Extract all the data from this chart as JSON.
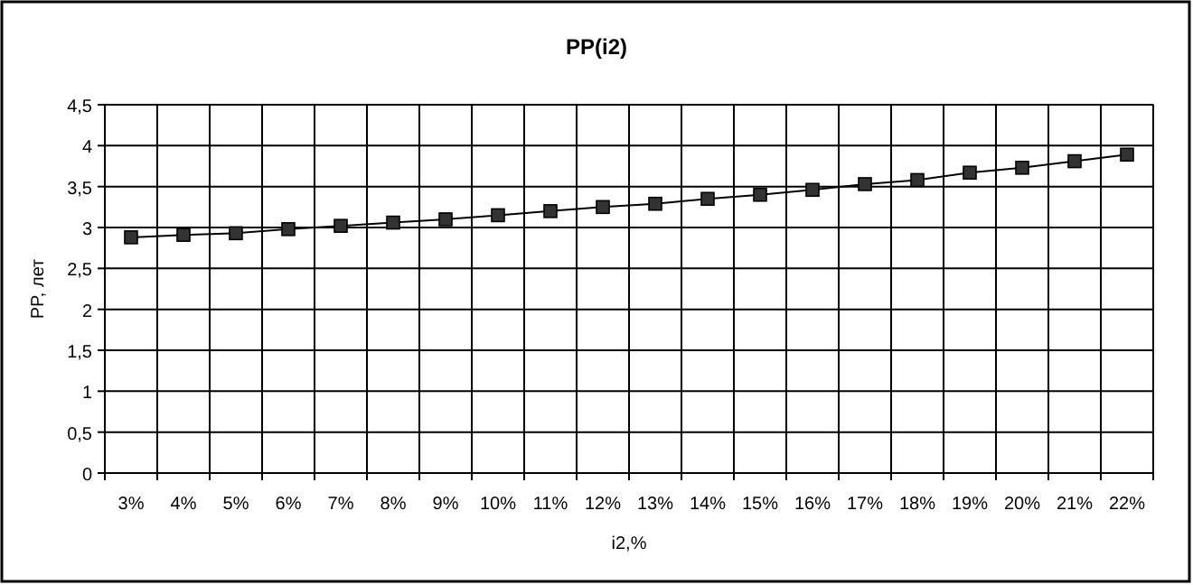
{
  "chart_data": {
    "type": "line",
    "title": "PP(i2)",
    "xlabel": "i2,%",
    "ylabel": "PP, лет",
    "categories": [
      "3%",
      "4%",
      "5%",
      "6%",
      "7%",
      "8%",
      "9%",
      "10%",
      "11%",
      "12%",
      "13%",
      "14%",
      "15%",
      "16%",
      "17%",
      "18%",
      "19%",
      "20%",
      "21%",
      "22%"
    ],
    "series": [
      {
        "color": "#333333",
        "values": [
          2.88,
          2.91,
          2.93,
          2.98,
          3.02,
          3.06,
          3.1,
          3.15,
          3.2,
          3.25,
          3.29,
          3.35,
          3.4,
          3.46,
          3.53,
          3.58,
          3.67,
          3.73,
          3.81,
          3.89
        ]
      }
    ],
    "ylim": [
      0,
      4.5
    ],
    "yticks": [
      {
        "value": 0,
        "label": "0"
      },
      {
        "value": 0.5,
        "label": "0,5"
      },
      {
        "value": 1,
        "label": "1"
      },
      {
        "value": 1.5,
        "label": "1,5"
      },
      {
        "value": 2,
        "label": "2"
      },
      {
        "value": 2.5,
        "label": "2,5"
      },
      {
        "value": 3,
        "label": "3"
      },
      {
        "value": 3.5,
        "label": "3,5"
      },
      {
        "value": 4,
        "label": "4"
      },
      {
        "value": 4.5,
        "label": "4,5"
      }
    ],
    "grid": true,
    "marker": "square",
    "line_style": "solid"
  }
}
